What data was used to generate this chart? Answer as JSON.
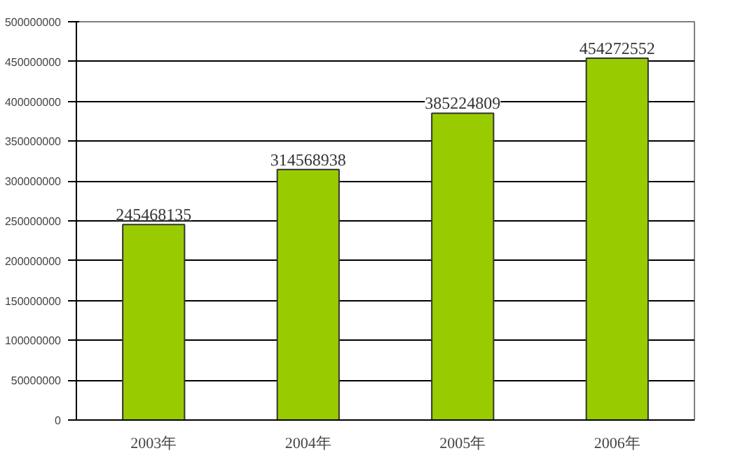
{
  "chart_data": {
    "type": "bar",
    "categories": [
      "2003年",
      "2004年",
      "2005年",
      "2006年"
    ],
    "values": [
      245468135,
      314568938,
      385224809,
      454272552
    ],
    "color": "#99cc00",
    "data_labels": true,
    "ylim": [
      0,
      500000000
    ],
    "yticks": [
      0,
      50000000,
      100000000,
      150000000,
      200000000,
      250000000,
      300000000,
      350000000,
      400000000,
      450000000,
      500000000
    ],
    "grid": "y"
  }
}
